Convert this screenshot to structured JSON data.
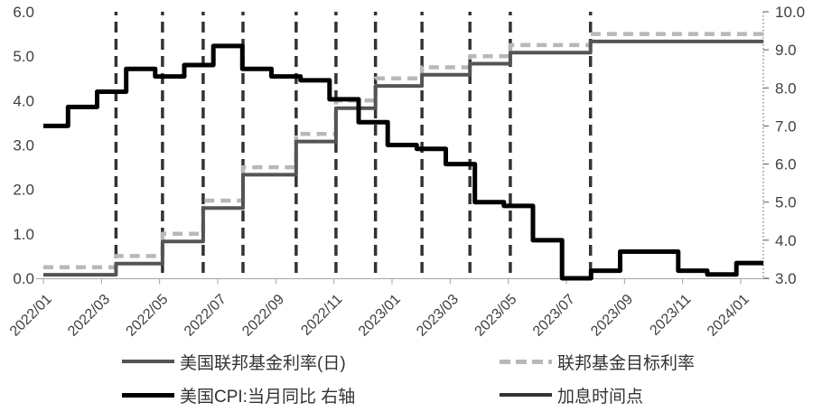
{
  "chart_data": {
    "type": "line",
    "title": "",
    "legend_position": "bottom",
    "grid": "off",
    "x_axis": {
      "tick_labels": [
        "2022/01",
        "2022/03",
        "2022/05",
        "2022/07",
        "2022/09",
        "2022/11",
        "2023/01",
        "2023/03",
        "2023/05",
        "2023/07",
        "2023/09",
        "2023/11",
        "2024/01"
      ],
      "months_span": 24.78
    },
    "y_left": {
      "min": 0,
      "max": 6,
      "tick_labels": [
        "0.0",
        "1.0",
        "2.0",
        "3.0",
        "4.0",
        "5.0",
        "6.0"
      ]
    },
    "y_right": {
      "min": 3,
      "max": 10,
      "tick_labels": [
        "3.0",
        "4.0",
        "5.0",
        "6.0",
        "7.0",
        "8.0",
        "9.0",
        "10.0"
      ]
    },
    "axis_text_color": "#3f3f3f",
    "x_axis_line_color": "#a6a6a6",
    "right_axis_line_color": "#595959",
    "series": [
      {
        "name": "美国联邦基金利率(日)",
        "axis": "left",
        "style": "solid",
        "color": "#545454",
        "step_points": [
          [
            0,
            0.08
          ],
          [
            2.5,
            0.33
          ],
          [
            4.1,
            0.83
          ],
          [
            5.5,
            1.58
          ],
          [
            6.87,
            2.33
          ],
          [
            8.7,
            3.08
          ],
          [
            10.07,
            3.83
          ],
          [
            11.43,
            4.33
          ],
          [
            13.03,
            4.58
          ],
          [
            14.68,
            4.83
          ],
          [
            16.07,
            5.08
          ],
          [
            18.83,
            5.33
          ]
        ]
      },
      {
        "name": "联邦基金目标利率",
        "axis": "left",
        "style": "dashed",
        "color": "#b8b8b8",
        "step_points": [
          [
            0,
            0.25
          ],
          [
            2.5,
            0.5
          ],
          [
            4.1,
            1.0
          ],
          [
            5.5,
            1.75
          ],
          [
            6.87,
            2.5
          ],
          [
            8.7,
            3.25
          ],
          [
            10.07,
            4.0
          ],
          [
            11.43,
            4.5
          ],
          [
            13.03,
            4.75
          ],
          [
            14.68,
            5.0
          ],
          [
            16.07,
            5.25
          ],
          [
            18.83,
            5.5
          ]
        ]
      },
      {
        "name": "美国CPI:当月同比 右轴",
        "axis": "right",
        "style": "solid",
        "color": "#000000",
        "step_points": [
          [
            0,
            7.0
          ],
          [
            0.85,
            7.5
          ],
          [
            1.85,
            7.9
          ],
          [
            2.85,
            8.5
          ],
          [
            3.85,
            8.3
          ],
          [
            4.85,
            8.6
          ],
          [
            5.85,
            9.1
          ],
          [
            6.85,
            8.5
          ],
          [
            7.85,
            8.3
          ],
          [
            8.85,
            8.2
          ],
          [
            9.85,
            7.7
          ],
          [
            10.85,
            7.1
          ],
          [
            11.85,
            6.5
          ],
          [
            12.85,
            6.4
          ],
          [
            13.85,
            6.0
          ],
          [
            14.85,
            5.0
          ],
          [
            15.85,
            4.9
          ],
          [
            16.85,
            4.0
          ],
          [
            17.85,
            3.0
          ],
          [
            18.85,
            3.2
          ],
          [
            19.85,
            3.7
          ],
          [
            21.85,
            3.2
          ],
          [
            22.85,
            3.1
          ],
          [
            23.85,
            3.4
          ]
        ]
      },
      {
        "name": "加息时间点",
        "axis": "x",
        "style": "vertical-dashed",
        "color": "#333333",
        "x_positions": [
          2.5,
          4.1,
          5.5,
          6.87,
          8.7,
          10.07,
          11.43,
          13.03,
          14.68,
          16.07,
          18.83
        ]
      }
    ]
  }
}
